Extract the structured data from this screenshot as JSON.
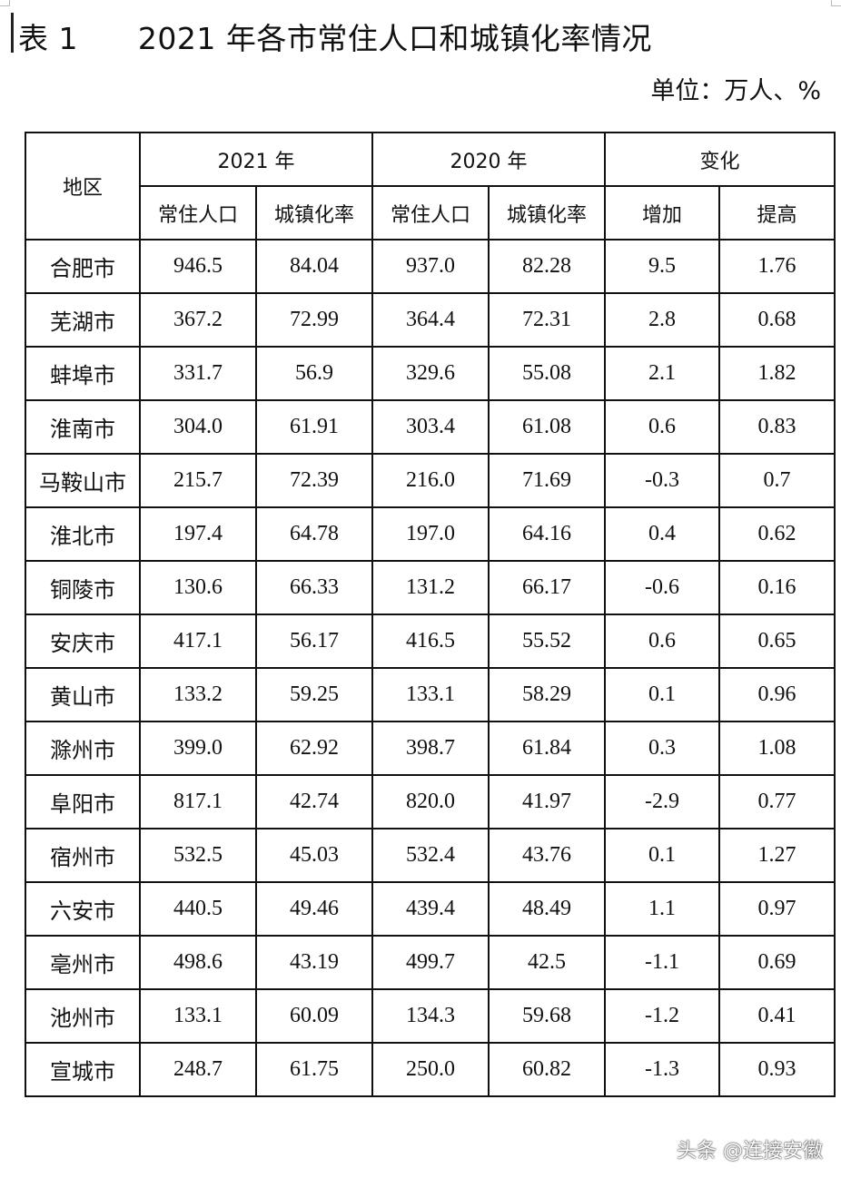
{
  "title": "表 1      2021 年各市常住人口和城镇化率情况",
  "unit": "单位：万人、%",
  "header": {
    "region": "地区",
    "groups": [
      "2021 年",
      "2020 年",
      "变化"
    ],
    "subs": [
      "常住人口",
      "城镇化率",
      "常住人口",
      "城镇化率",
      "增加",
      "提高"
    ]
  },
  "rows": [
    [
      "合肥市",
      "946.5",
      "84.04",
      "937.0",
      "82.28",
      "9.5",
      "1.76"
    ],
    [
      "芜湖市",
      "367.2",
      "72.99",
      "364.4",
      "72.31",
      "2.8",
      "0.68"
    ],
    [
      "蚌埠市",
      "331.7",
      "56.9",
      "329.6",
      "55.08",
      "2.1",
      "1.82"
    ],
    [
      "淮南市",
      "304.0",
      "61.91",
      "303.4",
      "61.08",
      "0.6",
      "0.83"
    ],
    [
      "马鞍山市",
      "215.7",
      "72.39",
      "216.0",
      "71.69",
      "-0.3",
      "0.7"
    ],
    [
      "淮北市",
      "197.4",
      "64.78",
      "197.0",
      "64.16",
      "0.4",
      "0.62"
    ],
    [
      "铜陵市",
      "130.6",
      "66.33",
      "131.2",
      "66.17",
      "-0.6",
      "0.16"
    ],
    [
      "安庆市",
      "417.1",
      "56.17",
      "416.5",
      "55.52",
      "0.6",
      "0.65"
    ],
    [
      "黄山市",
      "133.2",
      "59.25",
      "133.1",
      "58.29",
      "0.1",
      "0.96"
    ],
    [
      "滁州市",
      "399.0",
      "62.92",
      "398.7",
      "61.84",
      "0.3",
      "1.08"
    ],
    [
      "阜阳市",
      "817.1",
      "42.74",
      "820.0",
      "41.97",
      "-2.9",
      "0.77"
    ],
    [
      "宿州市",
      "532.5",
      "45.03",
      "532.4",
      "43.76",
      "0.1",
      "1.27"
    ],
    [
      "六安市",
      "440.5",
      "49.46",
      "439.4",
      "48.49",
      "1.1",
      "0.97"
    ],
    [
      "亳州市",
      "498.6",
      "43.19",
      "499.7",
      "42.5",
      "-1.1",
      "0.69"
    ],
    [
      "池州市",
      "133.1",
      "60.09",
      "134.3",
      "59.68",
      "-1.2",
      "0.41"
    ],
    [
      "宣城市",
      "248.7",
      "61.75",
      "250.0",
      "60.82",
      "-1.3",
      "0.93"
    ]
  ],
  "watermark": "头条 @连接安徽"
}
